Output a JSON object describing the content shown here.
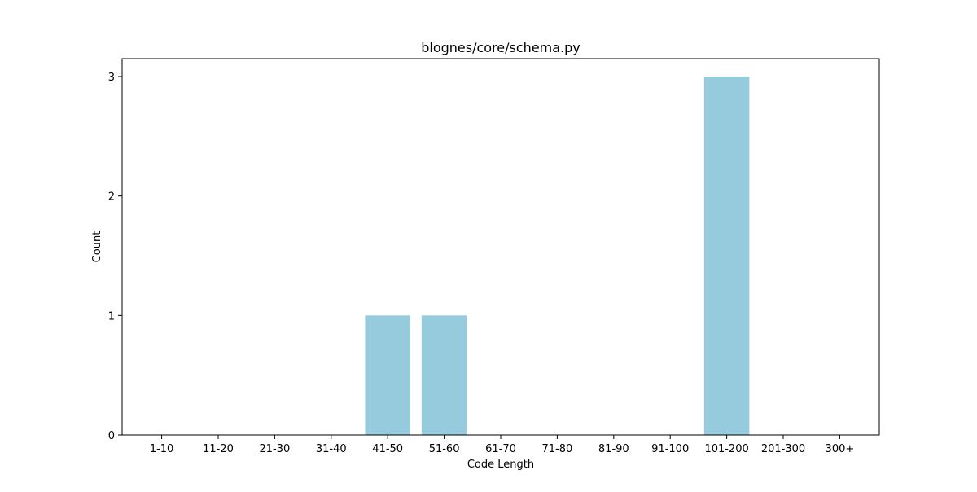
{
  "chart_data": {
    "type": "bar",
    "title": "blognes/core/schema.py",
    "xlabel": "Code Length",
    "ylabel": "Count",
    "categories": [
      "1-10",
      "11-20",
      "21-30",
      "31-40",
      "41-50",
      "51-60",
      "61-70",
      "71-80",
      "81-90",
      "91-100",
      "101-200",
      "201-300",
      "300+"
    ],
    "values": [
      0,
      0,
      0,
      0,
      1,
      1,
      0,
      0,
      0,
      0,
      3,
      0,
      0
    ],
    "yticks": [
      "0",
      "1",
      "2",
      "3"
    ],
    "ylim": [
      0,
      3.15
    ],
    "bar_color": "#96cadd",
    "grid": false,
    "legend": "none"
  }
}
